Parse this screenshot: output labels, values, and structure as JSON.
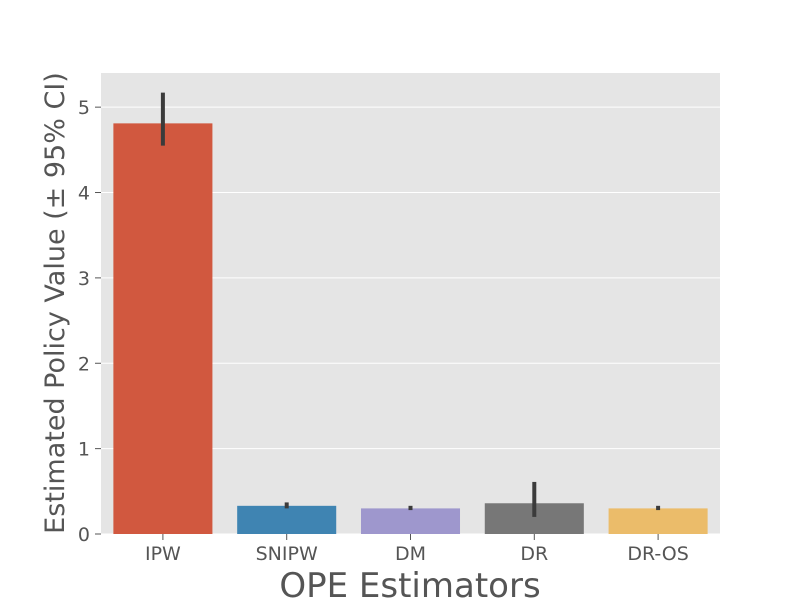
{
  "chart_data": {
    "type": "bar",
    "title": "",
    "xlabel": "OPE Estimators",
    "ylabel": "Estimated Policy Value (± 95% CI)",
    "categories": [
      "IPW",
      "SNIPW",
      "DM",
      "DR",
      "DR-OS"
    ],
    "values": [
      4.81,
      0.33,
      0.3,
      0.36,
      0.3
    ],
    "ci_low": [
      4.55,
      0.3,
      0.28,
      0.2,
      0.28
    ],
    "ci_high": [
      5.17,
      0.37,
      0.33,
      0.61,
      0.33
    ],
    "colors": [
      "#d1583f",
      "#3f84b2",
      "#9e97cd",
      "#777777",
      "#ebbc6a"
    ],
    "ylim": [
      0,
      5.4
    ],
    "yticks": [
      "0",
      "1",
      "2",
      "3",
      "4",
      "5"
    ],
    "grid": true,
    "background": "#e5e5e5",
    "errorbar_color": "#3b3b3b"
  }
}
